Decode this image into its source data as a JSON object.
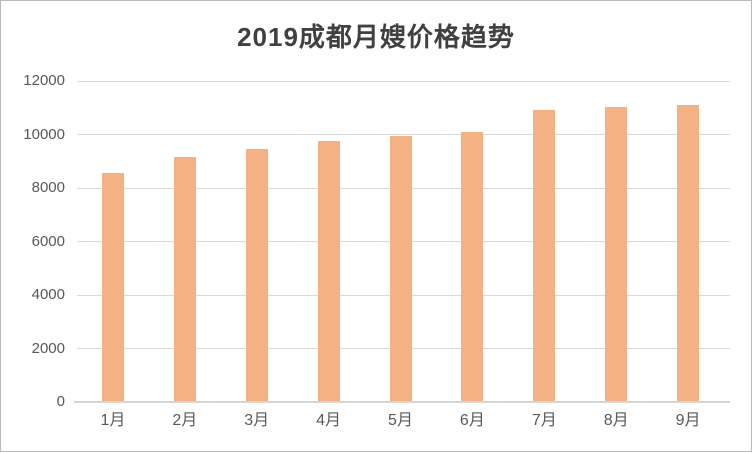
{
  "chart_data": {
    "type": "bar",
    "title": "2019成都月嫂价格趋势",
    "categories": [
      "1月",
      "2月",
      "3月",
      "4月",
      "5月",
      "6月",
      "7月",
      "8月",
      "9月"
    ],
    "values": [
      8560,
      9160,
      9470,
      9750,
      9960,
      10110,
      10900,
      11040,
      11090
    ],
    "xlabel": "",
    "ylabel": "",
    "ylim": [
      0,
      12000
    ],
    "yticks": [
      0,
      2000,
      4000,
      6000,
      8000,
      10000,
      12000
    ],
    "grid": true,
    "legend_position": "none",
    "bar_color": "#f4b183",
    "gridline_color": "#dadada",
    "axis_line_color": "#d6d6d6",
    "tick_label_color": "#595959",
    "title_color": "#404040"
  }
}
